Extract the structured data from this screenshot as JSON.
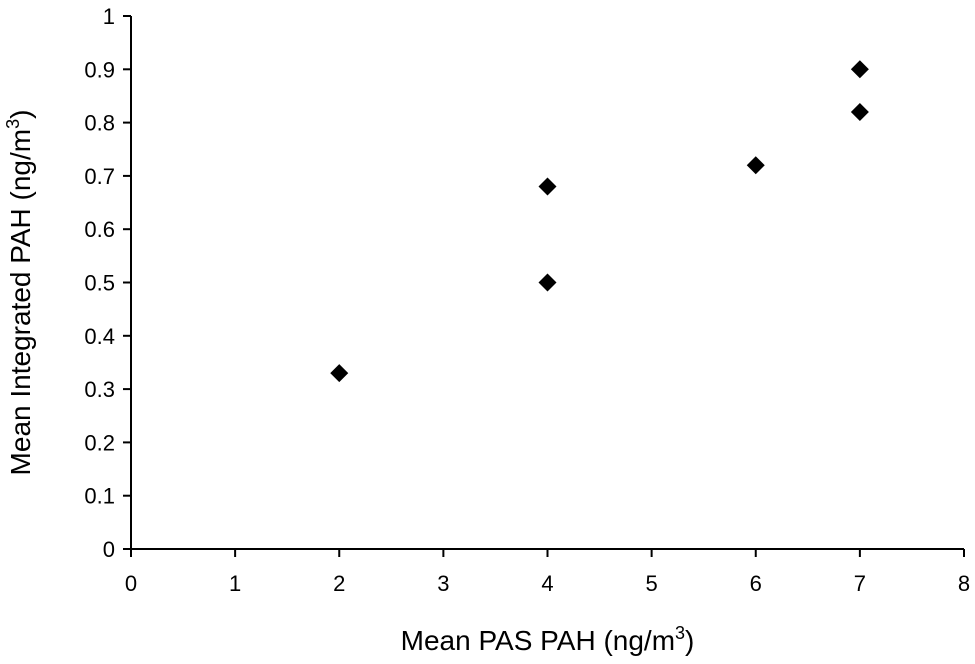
{
  "chart_data": {
    "type": "scatter",
    "title": "",
    "xlabel": "Mean PAS PAH (ng/m3)",
    "ylabel": "Mean Integrated PAH (ng/m3)",
    "xlabel_parts": {
      "base": "Mean PAS PAH (ng/m",
      "sup": "3",
      "end": ")"
    },
    "ylabel_parts": {
      "base": "Mean Integrated PAH (ng/m",
      "sup": "3",
      "end": ")"
    },
    "xlim": [
      0,
      8
    ],
    "ylim": [
      0,
      1
    ],
    "x_ticks": [
      "0",
      "1",
      "2",
      "3",
      "4",
      "5",
      "6",
      "7",
      "8"
    ],
    "y_ticks": [
      "0",
      "0.1",
      "0.2",
      "0.3",
      "0.4",
      "0.5",
      "0.6",
      "0.7",
      "0.8",
      "0.9",
      "1"
    ],
    "grid": false,
    "legend": "none",
    "marker": "diamond",
    "marker_color": "#000000",
    "series": [
      {
        "points": [
          {
            "x": 2,
            "y": 0.33
          },
          {
            "x": 4,
            "y": 0.68
          },
          {
            "x": 4,
            "y": 0.5
          },
          {
            "x": 6,
            "y": 0.72
          },
          {
            "x": 7,
            "y": 0.9
          },
          {
            "x": 7,
            "y": 0.82
          }
        ]
      }
    ]
  }
}
